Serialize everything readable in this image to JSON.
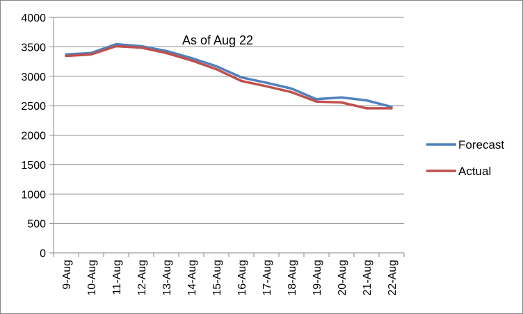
{
  "chart_data": {
    "type": "line",
    "title": "As of Aug 22",
    "xlabel": "",
    "ylabel": "",
    "ylim": [
      0,
      4000
    ],
    "yticks": [
      0,
      500,
      1000,
      1500,
      2000,
      2500,
      3000,
      3500,
      4000
    ],
    "grid": "horizontal",
    "legend_position": "right",
    "categories": [
      "9-Aug",
      "10-Aug",
      "11-Aug",
      "12-Aug",
      "13-Aug",
      "14-Aug",
      "15-Aug",
      "16-Aug",
      "17-Aug",
      "18-Aug",
      "19-Aug",
      "20-Aug",
      "21-Aug",
      "22-Aug"
    ],
    "series": [
      {
        "name": "Forecast",
        "color": "#4F81BD",
        "values": [
          3370,
          3395,
          3545,
          3510,
          3430,
          3310,
          3170,
          2980,
          2890,
          2790,
          2610,
          2640,
          2590,
          2480
        ]
      },
      {
        "name": "Actual",
        "color": "#C0504D",
        "values": [
          3345,
          3370,
          3510,
          3485,
          3395,
          3270,
          3120,
          2920,
          2830,
          2730,
          2570,
          2555,
          2455,
          2455
        ]
      }
    ]
  }
}
